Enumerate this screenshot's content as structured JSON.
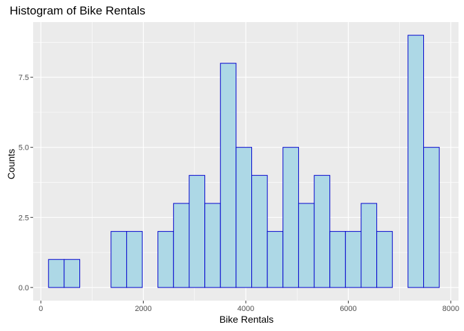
{
  "chart_data": {
    "type": "bar",
    "title": "Histogram of Bike Rentals",
    "xlabel": "Bike Rentals",
    "ylabel": "Counts",
    "xlim": [
      0,
      8000
    ],
    "ylim": [
      0,
      9.4
    ],
    "x_ticks": [
      0,
      2000,
      4000,
      6000,
      8000
    ],
    "x_tick_labels": [
      "0",
      "2000",
      "4000",
      "6000",
      "8000"
    ],
    "y_ticks": [
      0,
      2.5,
      5,
      7.5
    ],
    "y_tick_labels": [
      "0.0",
      "2.5",
      "5.0",
      "7.5"
    ],
    "bins": [
      {
        "x0": 150,
        "x1": 455,
        "count": 1
      },
      {
        "x0": 455,
        "x1": 760,
        "count": 1
      },
      {
        "x0": 760,
        "x1": 1065,
        "count": 0
      },
      {
        "x0": 1065,
        "x1": 1370,
        "count": 0
      },
      {
        "x0": 1370,
        "x1": 1675,
        "count": 2
      },
      {
        "x0": 1675,
        "x1": 1980,
        "count": 2
      },
      {
        "x0": 1980,
        "x1": 2285,
        "count": 0
      },
      {
        "x0": 2285,
        "x1": 2590,
        "count": 2
      },
      {
        "x0": 2590,
        "x1": 2895,
        "count": 3
      },
      {
        "x0": 2895,
        "x1": 3200,
        "count": 4
      },
      {
        "x0": 3200,
        "x1": 3505,
        "count": 3
      },
      {
        "x0": 3505,
        "x1": 3810,
        "count": 8
      },
      {
        "x0": 3810,
        "x1": 4115,
        "count": 5
      },
      {
        "x0": 4115,
        "x1": 4420,
        "count": 4
      },
      {
        "x0": 4420,
        "x1": 4725,
        "count": 2
      },
      {
        "x0": 4725,
        "x1": 5030,
        "count": 5
      },
      {
        "x0": 5030,
        "x1": 5335,
        "count": 3
      },
      {
        "x0": 5335,
        "x1": 5640,
        "count": 4
      },
      {
        "x0": 5640,
        "x1": 5945,
        "count": 2
      },
      {
        "x0": 5945,
        "x1": 6250,
        "count": 2
      },
      {
        "x0": 6250,
        "x1": 6555,
        "count": 3
      },
      {
        "x0": 6555,
        "x1": 6860,
        "count": 2
      },
      {
        "x0": 6860,
        "x1": 7165,
        "count": 0
      },
      {
        "x0": 7165,
        "x1": 7470,
        "count": 9
      },
      {
        "x0": 7470,
        "x1": 7775,
        "count": 5
      }
    ],
    "bar_fill": "#add8e6",
    "bar_stroke": "#0000cd",
    "panel_background": "#ebebeb",
    "grid": true,
    "grid_color": "#ffffff"
  }
}
